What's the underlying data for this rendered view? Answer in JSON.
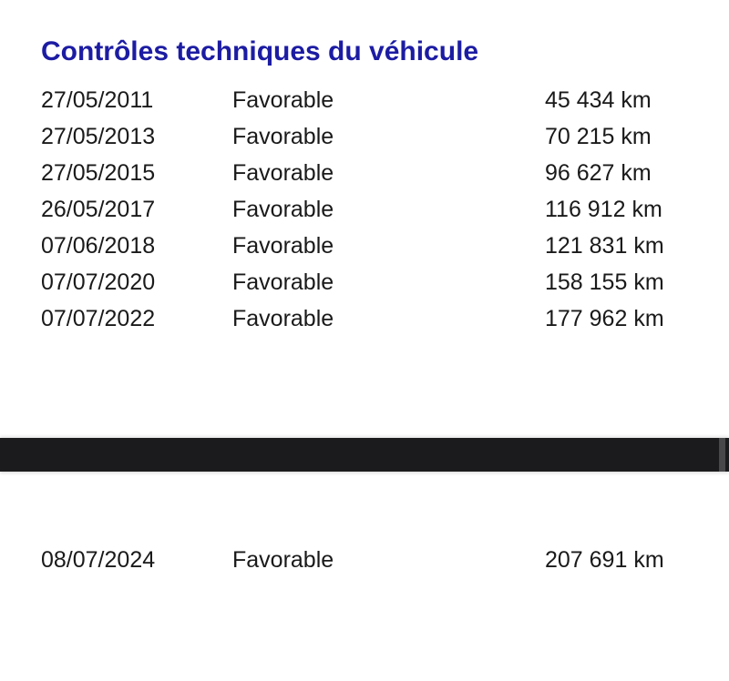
{
  "page": {
    "background_color": "#ffffff",
    "title_color": "#1c1ca3",
    "text_color": "#1a1a1a",
    "divider_color": "#1b1b1d",
    "scroll_thumb_color": "#48484b"
  },
  "section": {
    "title": "Contrôles techniques du véhicule"
  },
  "inspections": [
    {
      "date": "27/05/2011",
      "result": "Favorable",
      "odometer": "45 434 km"
    },
    {
      "date": "27/05/2013",
      "result": "Favorable",
      "odometer": "70 215 km"
    },
    {
      "date": "27/05/2015",
      "result": "Favorable",
      "odometer": "96 627 km"
    },
    {
      "date": "26/05/2017",
      "result": "Favorable",
      "odometer": "116 912 km"
    },
    {
      "date": "07/06/2018",
      "result": "Favorable",
      "odometer": "121 831 km"
    },
    {
      "date": "07/07/2020",
      "result": "Favorable",
      "odometer": "158 155 km"
    },
    {
      "date": "07/07/2022",
      "result": "Favorable",
      "odometer": "177 962 km"
    }
  ],
  "later_inspection": {
    "date": "08/07/2024",
    "result": "Favorable",
    "odometer": "207 691 km"
  }
}
